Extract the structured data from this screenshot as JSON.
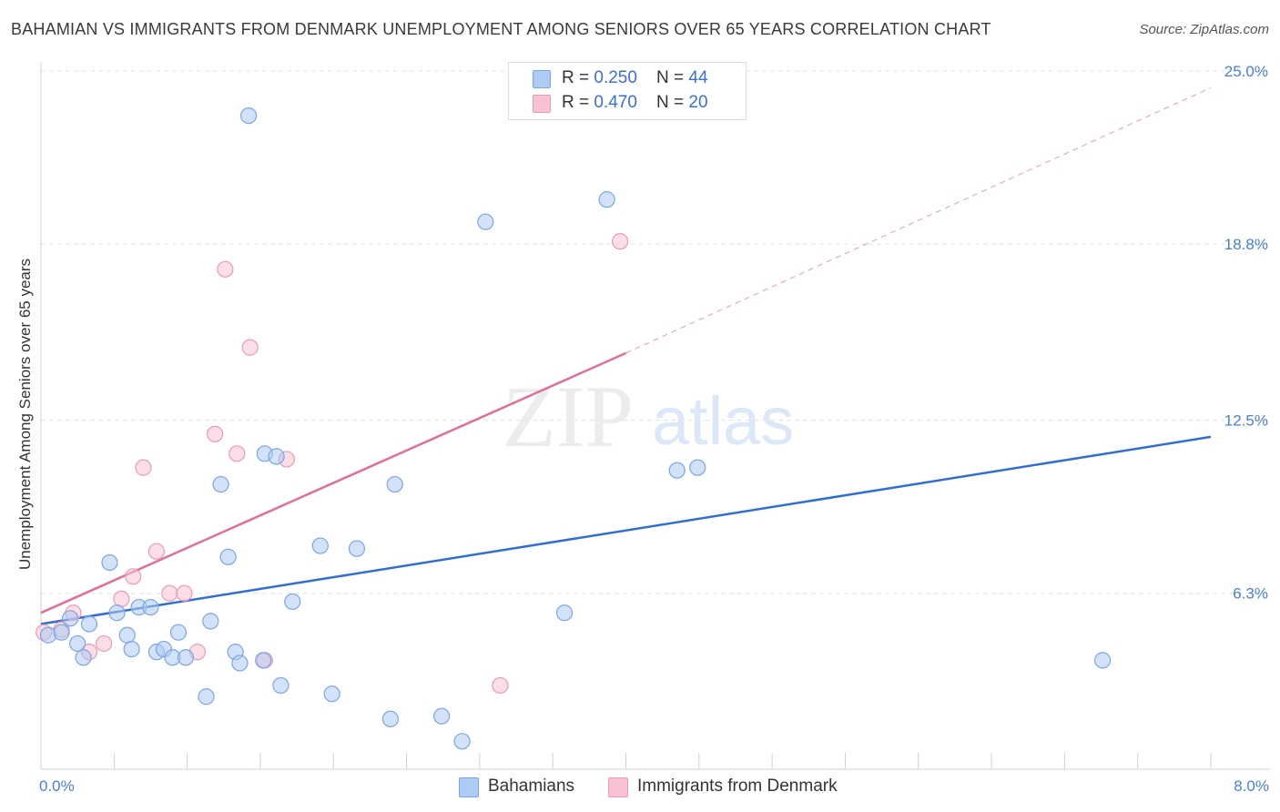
{
  "header": {
    "title": "BAHAMIAN VS IMMIGRANTS FROM DENMARK UNEMPLOYMENT AMONG SENIORS OVER 65 YEARS CORRELATION CHART",
    "source": "Source: ZipAtlas.com"
  },
  "legend": {
    "row1": {
      "r_label": "R = ",
      "r_value": "0.250",
      "n_label": "N = ",
      "n_value": "44"
    },
    "row2": {
      "r_label": "R = ",
      "r_value": "0.470",
      "n_label": "N = ",
      "n_value": "20"
    }
  },
  "watermark": {
    "zip": "ZIP",
    "atlas": "atlas"
  },
  "colors": {
    "blue_fill": "#aecbf3",
    "blue_stroke": "#7aa6e6",
    "blue_line": "#2f6fd4",
    "pink_fill": "#f8c2d2",
    "pink_stroke": "#ee9ab4",
    "pink_line": "#e06e98",
    "axis_label": "#4a7fd6",
    "grid": "#e4e4e4"
  },
  "chart_data": {
    "type": "scatter",
    "title": "BAHAMIAN VS IMMIGRANTS FROM DENMARK UNEMPLOYMENT AMONG SENIORS OVER 65 YEARS CORRELATION CHART",
    "xlabel": "",
    "ylabel": "Unemployment Among Seniors over 65 years",
    "xlim": [
      0,
      8
    ],
    "ylim": [
      0,
      25.0
    ],
    "x_tick_labels": [
      "0.0%",
      "8.0%"
    ],
    "y_ticks": [
      6.3,
      12.5,
      18.8,
      25.0
    ],
    "y_tick_labels": [
      "6.3%",
      "12.5%",
      "18.8%",
      "25.0%"
    ],
    "grid": true,
    "legend_position": "bottom",
    "series": [
      {
        "name": "Bahamians",
        "color": "#aecbf3",
        "R": 0.25,
        "N": 44,
        "trend": {
          "x": [
            0,
            8
          ],
          "y": [
            5.2,
            11.9
          ],
          "dashed_extension": false
        },
        "points": [
          [
            0.05,
            4.8
          ],
          [
            0.14,
            4.9
          ],
          [
            0.2,
            5.4
          ],
          [
            0.25,
            4.5
          ],
          [
            0.29,
            4.0
          ],
          [
            0.33,
            5.2
          ],
          [
            0.47,
            7.4
          ],
          [
            0.52,
            5.6
          ],
          [
            0.59,
            4.8
          ],
          [
            0.62,
            4.3
          ],
          [
            0.67,
            5.8
          ],
          [
            0.75,
            5.8
          ],
          [
            0.79,
            4.2
          ],
          [
            0.84,
            4.3
          ],
          [
            0.9,
            4.0
          ],
          [
            0.94,
            4.9
          ],
          [
            0.99,
            4.0
          ],
          [
            1.13,
            2.6
          ],
          [
            1.16,
            5.3
          ],
          [
            1.23,
            10.2
          ],
          [
            1.28,
            7.6
          ],
          [
            1.33,
            4.2
          ],
          [
            1.36,
            3.8
          ],
          [
            1.42,
            23.4
          ],
          [
            1.52,
            3.9
          ],
          [
            1.53,
            11.3
          ],
          [
            1.61,
            11.2
          ],
          [
            1.64,
            3.0
          ],
          [
            1.72,
            6.0
          ],
          [
            1.91,
            8.0
          ],
          [
            1.99,
            2.7
          ],
          [
            2.16,
            7.9
          ],
          [
            2.39,
            1.8
          ],
          [
            2.42,
            10.2
          ],
          [
            2.74,
            1.9
          ],
          [
            2.88,
            1.0
          ],
          [
            3.04,
            19.6
          ],
          [
            3.58,
            5.6
          ],
          [
            3.87,
            20.4
          ],
          [
            4.35,
            10.7
          ],
          [
            4.49,
            10.8
          ],
          [
            7.26,
            3.9
          ]
        ]
      },
      {
        "name": "Immigrants from Denmark",
        "color": "#f8c2d2",
        "R": 0.47,
        "N": 20,
        "trend": {
          "x": [
            0,
            4.0
          ],
          "y": [
            5.6,
            14.9
          ],
          "dashed_extension_to": [
            8,
            24.4
          ]
        },
        "points": [
          [
            0.02,
            4.9
          ],
          [
            0.14,
            5.0
          ],
          [
            0.22,
            5.6
          ],
          [
            0.33,
            4.2
          ],
          [
            0.43,
            4.5
          ],
          [
            0.55,
            6.1
          ],
          [
            0.63,
            6.9
          ],
          [
            0.7,
            10.8
          ],
          [
            0.79,
            7.8
          ],
          [
            0.88,
            6.3
          ],
          [
            0.98,
            6.3
          ],
          [
            1.07,
            4.2
          ],
          [
            1.19,
            12.0
          ],
          [
            1.26,
            17.9
          ],
          [
            1.34,
            11.3
          ],
          [
            1.43,
            15.1
          ],
          [
            1.53,
            3.9
          ],
          [
            1.68,
            11.1
          ],
          [
            3.14,
            3.0
          ],
          [
            3.96,
            18.9
          ]
        ]
      }
    ]
  },
  "bottom_legend": {
    "item1": "Bahamians",
    "item2": "Immigrants from Denmark"
  }
}
